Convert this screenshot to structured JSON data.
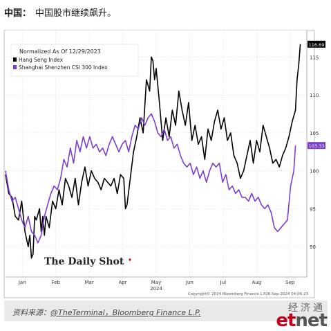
{
  "heading": {
    "label": "中国：",
    "text": "中国股市继续飙升。"
  },
  "caption": {
    "prefix": "资料来源：",
    "source": "@TheTerminal，Bloomberg Finance L.P."
  },
  "etnet": {
    "cn": "经济通",
    "brand_e": "et",
    "brand_rest": "net"
  },
  "chart_data": {
    "type": "line",
    "title": "Normalized As Of 12/29/2023",
    "watermark": "The Daily Shot",
    "copyright": "Copyright© 2024 Bloomberg Finance L.P.",
    "timestamp": "26-Sep-2024 04:06:23",
    "x_ticks": [
      "Jan",
      "Feb",
      "Mar",
      "Apr",
      "May",
      "Jun",
      "Jul",
      "Aug",
      "Sep"
    ],
    "year_label": "2024",
    "y_ticks": [
      90,
      95,
      100,
      105,
      110,
      115
    ],
    "ylim": [
      86,
      118.5
    ],
    "xlim": [
      0,
      186
    ],
    "grid": true,
    "legend_position": "top-left",
    "series": [
      {
        "name": "Hang Seng Index",
        "color": "#000000",
        "last_value": "116.69",
        "points": [
          [
            0,
            99.5
          ],
          [
            2,
            97
          ],
          [
            4,
            96.5
          ],
          [
            6,
            94
          ],
          [
            8,
            93.5
          ],
          [
            10,
            96
          ],
          [
            12,
            92
          ],
          [
            14,
            90
          ],
          [
            15,
            91.5
          ],
          [
            16,
            88.5
          ],
          [
            17,
            89
          ],
          [
            18,
            94
          ],
          [
            19,
            93.5
          ],
          [
            21,
            95
          ],
          [
            22,
            92
          ],
          [
            23,
            94
          ],
          [
            24,
            91.5
          ],
          [
            25,
            94
          ],
          [
            27,
            92.5
          ],
          [
            29,
            96
          ],
          [
            31,
            95
          ],
          [
            33,
            97.5
          ],
          [
            35,
            95.5
          ],
          [
            37,
            99
          ],
          [
            39,
            98
          ],
          [
            41,
            96.5
          ],
          [
            43,
            99
          ],
          [
            45,
            95.5
          ],
          [
            47,
            98.5
          ],
          [
            49,
            100.5
          ],
          [
            51,
            98
          ],
          [
            53,
            100
          ],
          [
            55,
            99
          ],
          [
            57,
            98.5
          ],
          [
            59,
            97.5
          ],
          [
            61,
            99
          ],
          [
            63,
            98.5
          ],
          [
            65,
            98
          ],
          [
            67,
            99
          ],
          [
            69,
            97
          ],
          [
            71,
            99.5
          ],
          [
            73,
            99
          ],
          [
            74,
            95
          ],
          [
            75,
            95.5
          ],
          [
            77,
            99
          ],
          [
            79,
            102.5
          ],
          [
            81,
            104.5
          ],
          [
            83,
            107
          ],
          [
            85,
            105
          ],
          [
            87,
            112
          ],
          [
            89,
            110.5
          ],
          [
            90,
            115
          ],
          [
            91,
            114.5
          ],
          [
            92,
            112
          ],
          [
            93,
            113.5
          ],
          [
            95,
            109
          ],
          [
            97,
            104
          ],
          [
            99,
            107
          ],
          [
            101,
            104.5
          ],
          [
            103,
            108
          ],
          [
            105,
            106
          ],
          [
            107,
            110.5
          ],
          [
            109,
            108
          ],
          [
            111,
            106
          ],
          [
            113,
            109
          ],
          [
            115,
            104
          ],
          [
            117,
            106
          ],
          [
            119,
            103.5
          ],
          [
            121,
            104.5
          ],
          [
            123,
            101.5
          ],
          [
            125,
            105.5
          ],
          [
            127,
            104
          ],
          [
            129,
            106.5
          ],
          [
            131,
            108
          ],
          [
            133,
            105.5
          ],
          [
            135,
            107
          ],
          [
            137,
            104
          ],
          [
            139,
            105
          ],
          [
            141,
            102
          ],
          [
            143,
            101
          ],
          [
            145,
            99
          ],
          [
            147,
            100
          ],
          [
            149,
            102
          ],
          [
            151,
            104
          ],
          [
            153,
            101
          ],
          [
            155,
            104
          ],
          [
            157,
            102.5
          ],
          [
            159,
            106
          ],
          [
            161,
            104.5
          ],
          [
            163,
            103
          ],
          [
            165,
            101
          ],
          [
            167,
            101.5
          ],
          [
            169,
            100.5
          ],
          [
            171,
            102
          ],
          [
            173,
            103
          ],
          [
            175,
            104.5
          ],
          [
            177,
            106.5
          ],
          [
            179,
            108
          ],
          [
            180,
            112
          ],
          [
            181,
            114
          ],
          [
            182,
            116.69
          ]
        ]
      },
      {
        "name": "Shanghai Shenzhen CSI 300 Index",
        "color": "#7b3fd0",
        "last_value": "103.33",
        "points": [
          [
            0,
            100
          ],
          [
            2,
            97.5
          ],
          [
            4,
            96
          ],
          [
            6,
            96.5
          ],
          [
            8,
            95
          ],
          [
            10,
            93.5
          ],
          [
            12,
            92.5
          ],
          [
            14,
            94
          ],
          [
            16,
            92
          ],
          [
            18,
            91.5
          ],
          [
            20,
            90.5
          ],
          [
            22,
            91.5
          ],
          [
            24,
            94
          ],
          [
            26,
            95.5
          ],
          [
            28,
            97
          ],
          [
            30,
            98
          ],
          [
            32,
            97.5
          ],
          [
            34,
            99
          ],
          [
            36,
            101.5
          ],
          [
            38,
            100.5
          ],
          [
            40,
            103
          ],
          [
            42,
            101
          ],
          [
            44,
            104
          ],
          [
            46,
            102.5
          ],
          [
            48,
            104.5
          ],
          [
            50,
            103
          ],
          [
            52,
            104.5
          ],
          [
            54,
            103
          ],
          [
            56,
            103.5
          ],
          [
            58,
            102.5
          ],
          [
            60,
            103
          ],
          [
            62,
            102
          ],
          [
            64,
            103.5
          ],
          [
            66,
            104.5
          ],
          [
            68,
            103.5
          ],
          [
            70,
            102.5
          ],
          [
            72,
            103.5
          ],
          [
            74,
            104
          ],
          [
            76,
            102.5
          ],
          [
            78,
            104.5
          ],
          [
            80,
            106
          ],
          [
            82,
            105.5
          ],
          [
            84,
            107
          ],
          [
            86,
            106
          ],
          [
            88,
            107
          ],
          [
            90,
            107.5
          ],
          [
            92,
            106.5
          ],
          [
            94,
            105
          ],
          [
            96,
            104.5
          ],
          [
            98,
            105.5
          ],
          [
            100,
            104
          ],
          [
            102,
            104.5
          ],
          [
            104,
            103
          ],
          [
            106,
            103.5
          ],
          [
            108,
            102
          ],
          [
            110,
            101
          ],
          [
            112,
            100.5
          ],
          [
            114,
            101
          ],
          [
            116,
            99.5
          ],
          [
            118,
            100.5
          ],
          [
            120,
            99
          ],
          [
            122,
            100
          ],
          [
            124,
            98.5
          ],
          [
            126,
            100
          ],
          [
            128,
            101
          ],
          [
            130,
            100.5
          ],
          [
            132,
            101
          ],
          [
            134,
            98.5
          ],
          [
            136,
            99.5
          ],
          [
            138,
            97.5
          ],
          [
            140,
            98
          ],
          [
            142,
            97
          ],
          [
            144,
            97.5
          ],
          [
            146,
            96.5
          ],
          [
            148,
            96.5
          ],
          [
            150,
            96
          ],
          [
            152,
            97
          ],
          [
            154,
            96
          ],
          [
            156,
            96.5
          ],
          [
            158,
            95.5
          ],
          [
            160,
            95
          ],
          [
            162,
            95.5
          ],
          [
            164,
            94.5
          ],
          [
            166,
            92.5
          ],
          [
            168,
            92
          ],
          [
            170,
            92.5
          ],
          [
            172,
            93
          ],
          [
            174,
            93.5
          ],
          [
            176,
            98
          ],
          [
            178,
            100
          ],
          [
            179,
            103.33
          ]
        ]
      }
    ]
  }
}
